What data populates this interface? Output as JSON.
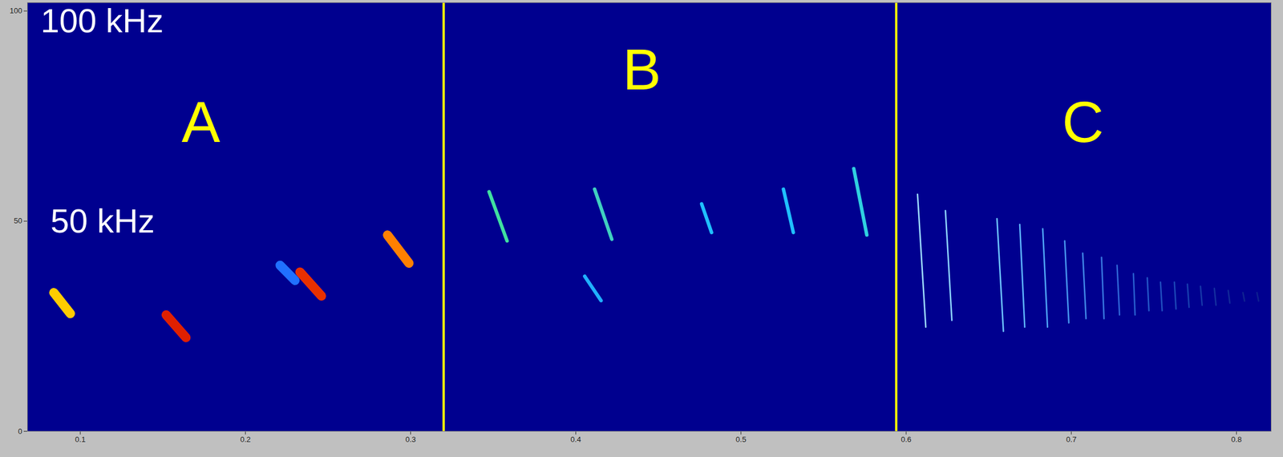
{
  "chart_data": {
    "type": "spectrogram",
    "xlim": [
      0.068,
      0.821
    ],
    "xticks": [
      0.1,
      0.2,
      0.3,
      0.4,
      0.5,
      0.6,
      0.7,
      0.8
    ],
    "ylim": [
      0,
      102
    ],
    "yticks": [
      0,
      50,
      100
    ],
    "grid": false,
    "color": "#00008f",
    "series": [
      {
        "line_style": "thick",
        "x1": [
          0.084,
          0.152,
          0.221,
          0.233,
          0.286
        ],
        "x2": [
          0.094,
          0.164,
          0.23,
          0.246,
          0.299
        ],
        "y1": [
          33.0,
          27.7,
          39.5,
          37.9,
          46.7
        ],
        "y2": [
          28.0,
          22.3,
          35.9,
          32.2,
          40.0
        ],
        "colors": [
          "#ffcc00",
          "#e02000",
          "#2070ff",
          "#e83000",
          "#ff8000"
        ]
      },
      {
        "line_style": "medium",
        "x1": [
          0.3475,
          0.4114,
          0.4054,
          0.4762,
          0.5257,
          0.5683
        ],
        "x2": [
          0.3584,
          0.4218,
          0.4153,
          0.4822,
          0.5317,
          0.5762
        ],
        "y1": [
          57.0,
          57.6,
          36.9,
          54.1,
          57.6,
          62.5
        ],
        "y2": [
          45.3,
          45.7,
          31.1,
          47.3,
          47.3,
          46.7
        ],
        "colors": [
          "#40e0a0",
          "#40d0c0",
          "#20b0ff",
          "#20c0ff",
          "#20c0ff",
          "#30d0e0"
        ]
      },
      {
        "line_style": "thin",
        "x1": [
          0.6069,
          0.6238,
          0.655,
          0.6688,
          0.6827,
          0.696,
          0.7069,
          0.7183,
          0.7277,
          0.7376,
          0.746,
          0.754,
          0.7624,
          0.7703,
          0.7782,
          0.7866,
          0.795,
          0.8039,
          0.8124
        ],
        "x2": [
          0.6119,
          0.6277,
          0.6589,
          0.6718,
          0.6856,
          0.6985,
          0.7089,
          0.7198,
          0.7292,
          0.7386,
          0.747,
          0.755,
          0.7634,
          0.7713,
          0.7792,
          0.7876,
          0.796,
          0.8049,
          0.8134
        ],
        "y1": [
          56.4,
          52.5,
          50.6,
          49.2,
          48.2,
          45.3,
          42.4,
          41.4,
          39.5,
          37.5,
          36.5,
          35.5,
          35.5,
          35.0,
          34.5,
          34.0,
          33.5,
          33.0,
          33.0
        ],
        "y2": [
          24.8,
          26.4,
          23.8,
          24.8,
          24.8,
          25.8,
          26.8,
          26.8,
          27.7,
          27.7,
          28.7,
          28.7,
          29.1,
          29.5,
          30.0,
          30.0,
          30.5,
          31.0,
          31.0
        ],
        "colors": [
          "#a0e0ff",
          "#90d8ff",
          "#70c8ff",
          "#60b8ff",
          "#50a8f8",
          "#4898f0",
          "#4088e8",
          "#3878e0",
          "#3068d8",
          "#2860d0",
          "#2458c8",
          "#2050c0",
          "#1c48b8",
          "#1840b0",
          "#1638a8",
          "#1430a0",
          "#122a98",
          "#102490",
          "#0e2090"
        ]
      }
    ],
    "dividers": {
      "x": [
        0.32,
        0.594
      ],
      "color": "#ffff00"
    },
    "annotations": [
      {
        "text": "100 kHz",
        "x": 0.076,
        "y": 97.5,
        "color": "#ffffff"
      },
      {
        "text": "50 kHz",
        "x": 0.082,
        "y": 49.8,
        "color": "#ffffff"
      }
    ],
    "panel_labels": [
      {
        "text": "A",
        "x": 0.173,
        "y": 73.2,
        "color": "#ffff00"
      },
      {
        "text": "B",
        "x": 0.44,
        "y": 85.7,
        "color": "#ffff00"
      },
      {
        "text": "C",
        "x": 0.707,
        "y": 73.2,
        "color": "#ffff00"
      }
    ]
  }
}
